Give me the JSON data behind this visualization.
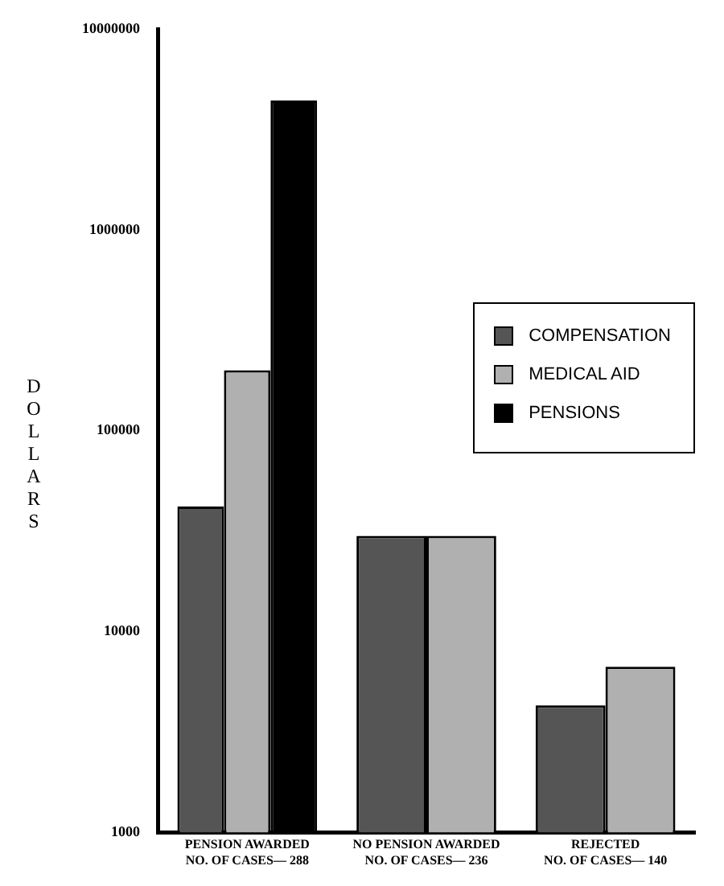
{
  "chart_data": {
    "type": "bar",
    "ylabel": "DOLLARS",
    "categories": [
      "PENSION AWARDED\nNO. OF CASES— 288",
      "NO PENSION AWARDED\nNO. OF CASES— 236",
      "REJECTED\nNO. OF CASES— 140"
    ],
    "series": [
      {
        "name": "COMPENSATION",
        "color": "#555555",
        "values": [
          42000,
          30000,
          4300
        ]
      },
      {
        "name": "MEDICAL AID",
        "color": "#b0b0b0",
        "values": [
          200000,
          30000,
          6700
        ]
      },
      {
        "name": "PENSIONS",
        "color": "#000000",
        "values": [
          4400000,
          null,
          null
        ]
      }
    ],
    "log": true,
    "ylim": [
      1000,
      10000000
    ],
    "yticks": [
      1000,
      10000,
      100000,
      1000000,
      10000000
    ],
    "grid": false,
    "legend": "right"
  }
}
